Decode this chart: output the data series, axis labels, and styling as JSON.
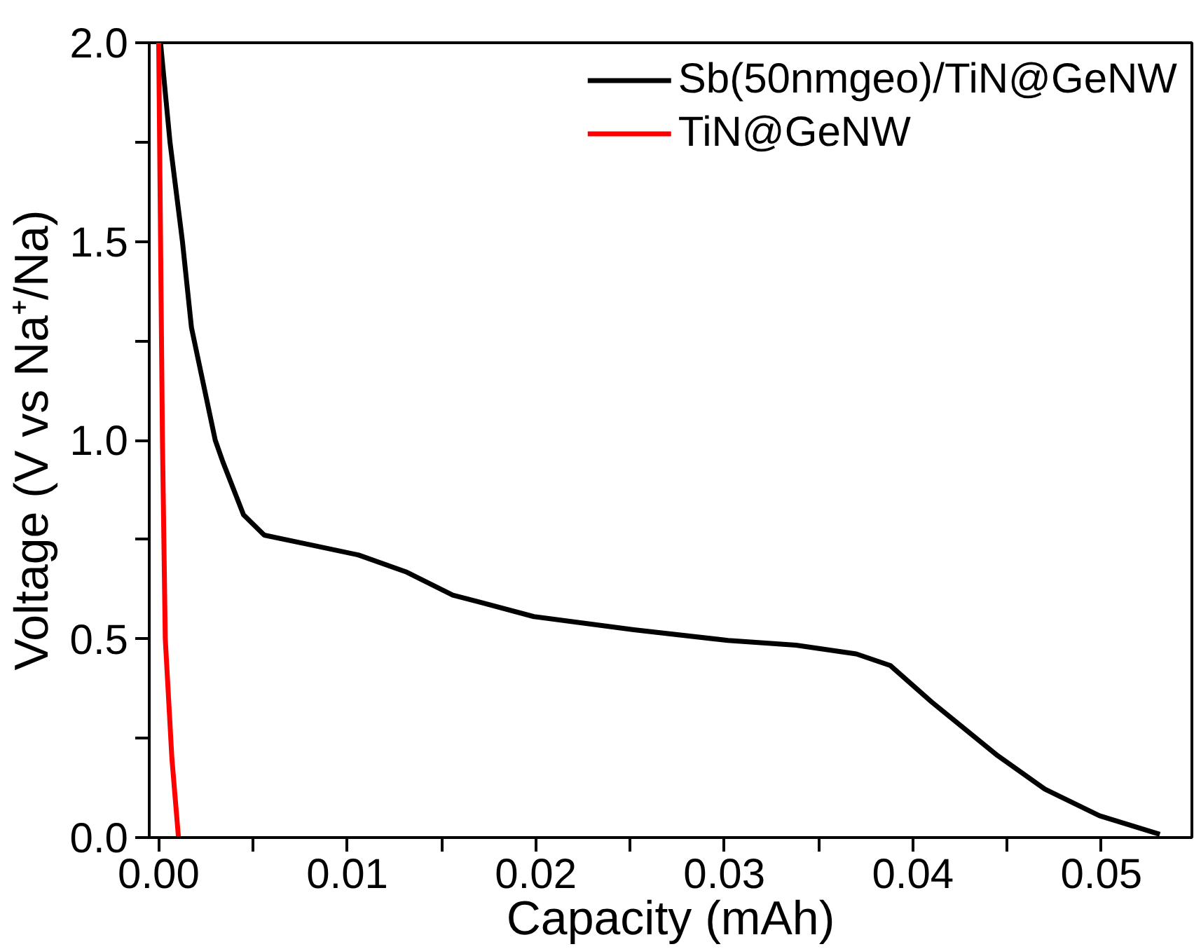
{
  "chart_data": {
    "type": "line",
    "xlabel": "Capacity (mAh)",
    "ylabel": "Voltage (V vs Na⁺/Na)",
    "xlim": [
      -0.0005,
      0.0548
    ],
    "ylim": [
      0.0,
      2.0
    ],
    "xticks": [
      {
        "value": 0,
        "label": "0.00"
      },
      {
        "value": 0.005,
        "label": null
      },
      {
        "value": 0.01,
        "label": "0.01"
      },
      {
        "value": 0.015,
        "label": null
      },
      {
        "value": 0.02,
        "label": "0.02"
      },
      {
        "value": 0.025,
        "label": null
      },
      {
        "value": 0.03,
        "label": "0.03"
      },
      {
        "value": 0.035,
        "label": null
      },
      {
        "value": 0.04,
        "label": "0.04"
      },
      {
        "value": 0.045,
        "label": null
      },
      {
        "value": 0.05,
        "label": "0.05"
      }
    ],
    "yticks": [
      {
        "value": 0,
        "label": "0.0"
      },
      {
        "value": 0.25,
        "label": null
      },
      {
        "value": 0.5,
        "label": "0.5"
      },
      {
        "value": 0.75,
        "label": null
      },
      {
        "value": 1,
        "label": "1.0"
      },
      {
        "value": 1.25,
        "label": null
      },
      {
        "value": 1.5,
        "label": "1.5"
      },
      {
        "value": 1.75,
        "label": null
      },
      {
        "value": 2,
        "label": "2.0"
      }
    ],
    "grid": false,
    "legend": "top right",
    "line_style": "solid",
    "marker": "none",
    "series": [
      {
        "name": "Sb(50nmgeo)/TiN@GeNW",
        "color": "#000000",
        "x": [
          0.0001,
          0.0006,
          0.00126,
          0.00174,
          0.003,
          0.0034,
          0.0045,
          0.0056,
          0.0081,
          0.0106,
          0.0131,
          0.0156,
          0.017,
          0.0199,
          0.0252,
          0.0302,
          0.0338,
          0.037,
          0.0388,
          0.041,
          0.0445,
          0.047,
          0.0499,
          0.0531
        ],
        "values": [
          2.0,
          1.75,
          1.5,
          1.283,
          1.0,
          0.946,
          0.812,
          0.761,
          0.736,
          0.711,
          0.669,
          0.61,
          0.593,
          0.556,
          0.523,
          0.496,
          0.484,
          0.462,
          0.433,
          0.341,
          0.206,
          0.122,
          0.055,
          0.008
        ]
      },
      {
        "name": "TiN@GeNW",
        "color": "#ff0000",
        "x": [
          0.0,
          0.0001,
          0.0002,
          0.00035,
          0.0007,
          0.00105
        ],
        "values": [
          2.0,
          1.5,
          1.0,
          0.5,
          0.2,
          0.0
        ]
      }
    ]
  }
}
